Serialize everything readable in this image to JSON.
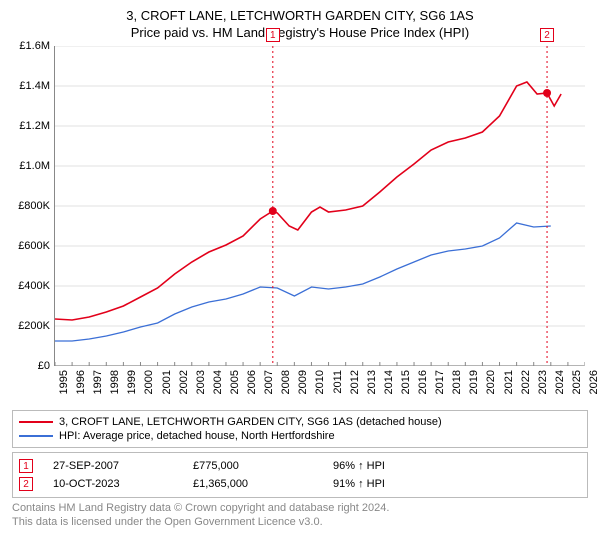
{
  "title": "3, CROFT LANE, LETCHWORTH GARDEN CITY, SG6 1AS",
  "subtitle": "Price paid vs. HM Land Registry's House Price Index (HPI)",
  "chart": {
    "type": "line",
    "background_color": "#ffffff",
    "grid_color": "#e0e0e0",
    "axis_color": "#888888",
    "xlim": [
      1995,
      2026
    ],
    "ylim": [
      0,
      1600000
    ],
    "ytick_step": 200000,
    "y_ticks": [
      "£0",
      "£200K",
      "£400K",
      "£600K",
      "£800K",
      "£1.0M",
      "£1.2M",
      "£1.4M",
      "£1.6M"
    ],
    "x_ticks": [
      1995,
      1996,
      1997,
      1998,
      1999,
      2000,
      2001,
      2002,
      2003,
      2004,
      2005,
      2006,
      2007,
      2008,
      2009,
      2010,
      2011,
      2012,
      2013,
      2014,
      2015,
      2016,
      2017,
      2018,
      2019,
      2020,
      2021,
      2022,
      2023,
      2024,
      2025,
      2026
    ],
    "series": [
      {
        "name": "3, CROFT LANE, LETCHWORTH GARDEN CITY, SG6 1AS (detached house)",
        "color": "#e2001a",
        "line_width": 1.6,
        "points": [
          [
            1995,
            235000
          ],
          [
            1996,
            230000
          ],
          [
            1997,
            245000
          ],
          [
            1998,
            270000
          ],
          [
            1999,
            300000
          ],
          [
            2000,
            345000
          ],
          [
            2001,
            390000
          ],
          [
            2002,
            460000
          ],
          [
            2003,
            520000
          ],
          [
            2004,
            570000
          ],
          [
            2005,
            605000
          ],
          [
            2006,
            650000
          ],
          [
            2007,
            735000
          ],
          [
            2007.74,
            775000
          ],
          [
            2008,
            765000
          ],
          [
            2008.7,
            700000
          ],
          [
            2009.2,
            680000
          ],
          [
            2010,
            770000
          ],
          [
            2010.5,
            795000
          ],
          [
            2011,
            770000
          ],
          [
            2012,
            780000
          ],
          [
            2013,
            800000
          ],
          [
            2014,
            870000
          ],
          [
            2015,
            945000
          ],
          [
            2016,
            1010000
          ],
          [
            2017,
            1080000
          ],
          [
            2018,
            1120000
          ],
          [
            2019,
            1140000
          ],
          [
            2020,
            1170000
          ],
          [
            2021,
            1250000
          ],
          [
            2022,
            1400000
          ],
          [
            2022.6,
            1420000
          ],
          [
            2023.2,
            1360000
          ],
          [
            2023.78,
            1365000
          ],
          [
            2024.2,
            1300000
          ],
          [
            2024.6,
            1360000
          ]
        ]
      },
      {
        "name": "HPI: Average price, detached house, North Hertfordshire",
        "color": "#3b6fd6",
        "line_width": 1.3,
        "points": [
          [
            1995,
            125000
          ],
          [
            1996,
            125000
          ],
          [
            1997,
            135000
          ],
          [
            1998,
            150000
          ],
          [
            1999,
            170000
          ],
          [
            2000,
            195000
          ],
          [
            2001,
            215000
          ],
          [
            2002,
            260000
          ],
          [
            2003,
            295000
          ],
          [
            2004,
            320000
          ],
          [
            2005,
            335000
          ],
          [
            2006,
            360000
          ],
          [
            2007,
            395000
          ],
          [
            2008,
            390000
          ],
          [
            2009,
            350000
          ],
          [
            2010,
            395000
          ],
          [
            2011,
            385000
          ],
          [
            2012,
            395000
          ],
          [
            2013,
            410000
          ],
          [
            2014,
            445000
          ],
          [
            2015,
            485000
          ],
          [
            2016,
            520000
          ],
          [
            2017,
            555000
          ],
          [
            2018,
            575000
          ],
          [
            2019,
            585000
          ],
          [
            2020,
            600000
          ],
          [
            2021,
            640000
          ],
          [
            2022,
            715000
          ],
          [
            2023,
            695000
          ],
          [
            2024,
            700000
          ]
        ]
      }
    ],
    "sale_markers": [
      {
        "label": "1",
        "year": 2007.74,
        "price": 775000,
        "color": "#e2001a"
      },
      {
        "label": "2",
        "year": 2023.78,
        "price": 1365000,
        "color": "#e2001a"
      }
    ],
    "marker_dot_radius": 4
  },
  "legend": {
    "items": [
      {
        "color": "#e2001a",
        "label": "3, CROFT LANE, LETCHWORTH GARDEN CITY, SG6 1AS (detached house)"
      },
      {
        "color": "#3b6fd6",
        "label": "HPI: Average price, detached house, North Hertfordshire"
      }
    ]
  },
  "trades": [
    {
      "label": "1",
      "color": "#e2001a",
      "date": "27-SEP-2007",
      "price": "£775,000",
      "pct": "96% ↑ HPI"
    },
    {
      "label": "2",
      "color": "#e2001a",
      "date": "10-OCT-2023",
      "price": "£1,365,000",
      "pct": "91% ↑ HPI"
    }
  ],
  "attribution": {
    "line1": "Contains HM Land Registry data © Crown copyright and database right 2024.",
    "line2": "This data is licensed under the Open Government Licence v3.0."
  }
}
